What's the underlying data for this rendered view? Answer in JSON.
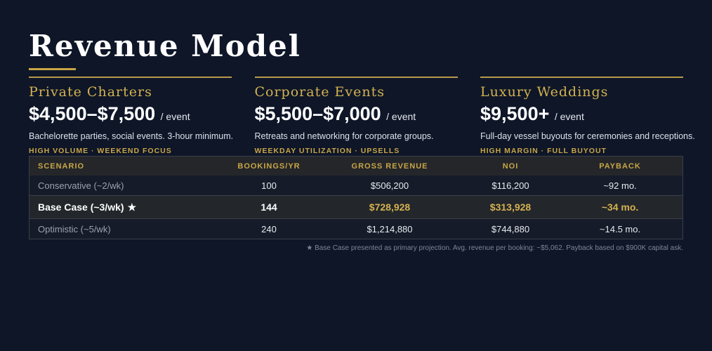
{
  "title": "Revenue Model",
  "colors": {
    "background": "#0e1628",
    "accent_gold": "#c9a646",
    "text_white": "#ffffff",
    "muted_text": "#9aa1b0"
  },
  "cards": [
    {
      "title": "Private Charters",
      "price": "$4,500–$7,500",
      "unit": "/ event",
      "description": "Bachelorette parties, social events. 3-hour minimum.",
      "tags": "HIGH VOLUME · WEEKEND FOCUS"
    },
    {
      "title": "Corporate Events",
      "price": "$5,500–$7,000",
      "unit": "/ event",
      "description": "Retreats and networking for corporate groups.",
      "tags": "WEEKDAY UTILIZATION · UPSELLS"
    },
    {
      "title": "Luxury Weddings",
      "price": "$9,500+",
      "unit": "/ event",
      "description": "Full-day vessel buyouts for ceremonies and receptions.",
      "tags": "HIGH MARGIN · FULL BUYOUT"
    }
  ],
  "table": {
    "headers": [
      "SCENARIO",
      "BOOKINGS/YR",
      "GROSS REVENUE",
      "NOI",
      "PAYBACK"
    ],
    "rows": [
      [
        "Conservative (~2/wk)",
        "100",
        "$506,200",
        "$116,200",
        "~92 mo."
      ],
      [
        "Base Case (~3/wk)",
        "144",
        "$728,928",
        "$313,928",
        "~34 mo."
      ],
      [
        "Optimistic (~5/wk)",
        "240",
        "$1,214,880",
        "$744,880",
        "~14.5 mo."
      ]
    ],
    "highlight_marker": "★"
  },
  "footnote": "★ Base Case presented as primary projection. Avg. revenue per booking: ~$5,062. Payback based on $900K capital ask."
}
